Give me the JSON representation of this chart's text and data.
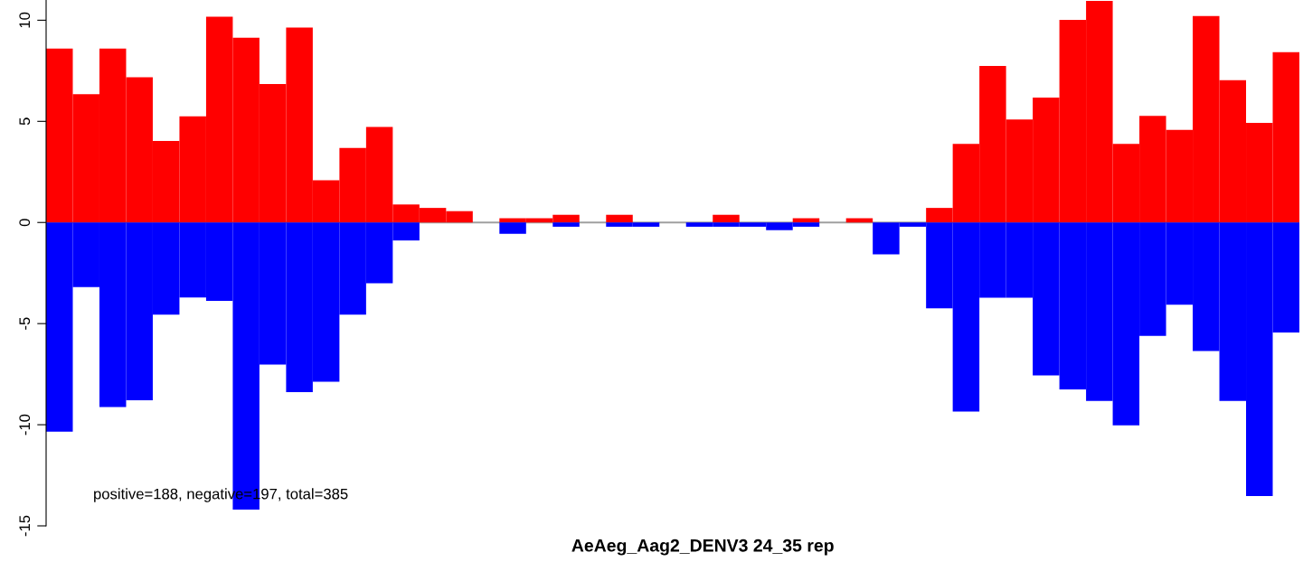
{
  "chart_data": {
    "type": "bar",
    "title": "AeAeg_Aag2_DENV3 24_35 rep",
    "categories": [
      null,
      null,
      null,
      null,
      null,
      null,
      null,
      null,
      null,
      null,
      null,
      null,
      null,
      null,
      null,
      null,
      null,
      null,
      null,
      null,
      null,
      null,
      null,
      null,
      null,
      null,
      null,
      null,
      null,
      null,
      null,
      null,
      null,
      null,
      null,
      null,
      null,
      null,
      null,
      null,
      null,
      null,
      null,
      null,
      null,
      null,
      null
    ],
    "stacked": true,
    "series": [
      {
        "color": "#ff0000",
        "values": [
          8.6,
          6.34,
          8.6,
          7.18,
          4.03,
          5.25,
          10.17,
          9.13,
          6.84,
          9.64,
          2.09,
          3.69,
          4.72,
          0.89,
          0.72,
          0.56,
          0,
          0.21,
          0.21,
          0.38,
          0,
          0.38,
          0,
          0,
          0,
          0.38,
          0,
          0,
          0.21,
          0,
          0.21,
          0,
          0,
          0.72,
          3.89,
          7.74,
          5.09,
          6.17,
          10.02,
          10.95,
          3.89,
          5.27,
          4.58,
          10.21,
          7.03,
          4.92,
          8.42
        ]
      },
      {
        "color": "#0000ff",
        "values": [
          -10.34,
          -3.2,
          -9.13,
          -8.79,
          -4.56,
          -3.71,
          -3.88,
          -14.2,
          -7.03,
          -8.39,
          -7.88,
          -4.56,
          -3.01,
          -0.89,
          0,
          0,
          0,
          -0.56,
          0,
          -0.21,
          0,
          -0.21,
          -0.21,
          0,
          -0.21,
          -0.21,
          -0.21,
          -0.38,
          -0.21,
          0,
          0,
          -1.58,
          -0.21,
          -4.24,
          -9.35,
          -3.72,
          -3.72,
          -7.56,
          -8.25,
          -8.82,
          -10.03,
          -5.61,
          -4.07,
          -6.36,
          -8.82,
          -13.53,
          -5.44
        ]
      }
    ],
    "ylim": [
      -15,
      11
    ],
    "yticks": [
      -15,
      -10,
      -5,
      0,
      5,
      10
    ],
    "ref_lines": [
      {
        "axis": "y",
        "value": 0,
        "color": "#a0a0a0"
      }
    ],
    "annotations": [
      "positive=188, negative=197, total=385"
    ],
    "grid": false
  }
}
